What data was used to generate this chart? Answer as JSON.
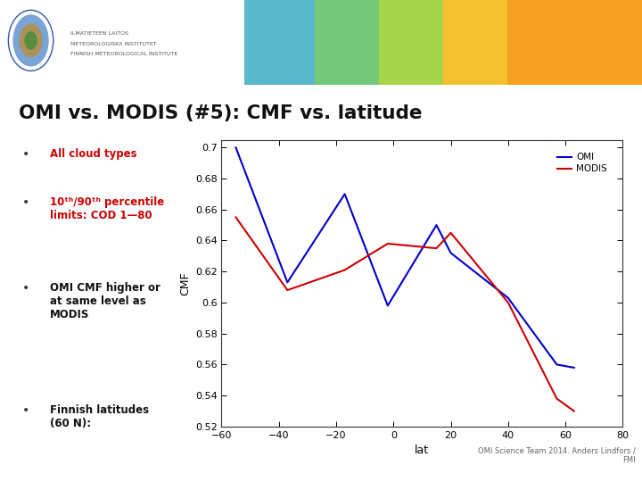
{
  "title": "OMI vs. MODIS (#5): CMF vs. latitude",
  "xlabel": "lat",
  "ylabel": "CMF",
  "xlim": [
    -60,
    80
  ],
  "ylim": [
    0.52,
    0.705
  ],
  "xticks": [
    -60,
    -40,
    -20,
    0,
    20,
    40,
    60,
    80
  ],
  "ytick_vals": [
    0.52,
    0.54,
    0.56,
    0.58,
    0.6,
    0.62,
    0.64,
    0.66,
    0.68,
    0.7
  ],
  "ytick_labels": [
    "0.52",
    "0.54",
    "0.56-",
    "0.58-",
    "0.6-",
    "0.62-",
    "0.64-",
    "0.66-",
    "0.68",
    "0.7"
  ],
  "omi_x": [
    -55,
    -37,
    -17,
    -2,
    15,
    20,
    40,
    57,
    63
  ],
  "omi_y": [
    0.7,
    0.613,
    0.67,
    0.598,
    0.65,
    0.632,
    0.603,
    0.56,
    0.558
  ],
  "modis_x": [
    -55,
    -37,
    -17,
    -2,
    15,
    20,
    40,
    57,
    63
  ],
  "modis_y": [
    0.655,
    0.608,
    0.621,
    0.638,
    0.635,
    0.645,
    0.6,
    0.538,
    0.53
  ],
  "omi_color": "#0000cc",
  "modis_color": "#cc0000",
  "bg_color": "#ffffff",
  "header_bg": "#f0efe8",
  "header_colors": [
    "#59b8cc",
    "#73c87a",
    "#a8d44a",
    "#f5c030",
    "#f5a020"
  ],
  "fmi_text_color": "#555555",
  "title_color": "#111111",
  "bullet_red": "#cc0000",
  "bullet_black": "#111111",
  "footer_text": "OMI Science Team 2014. Anders Lindfors /\nFMI",
  "footer_color": "#666666"
}
